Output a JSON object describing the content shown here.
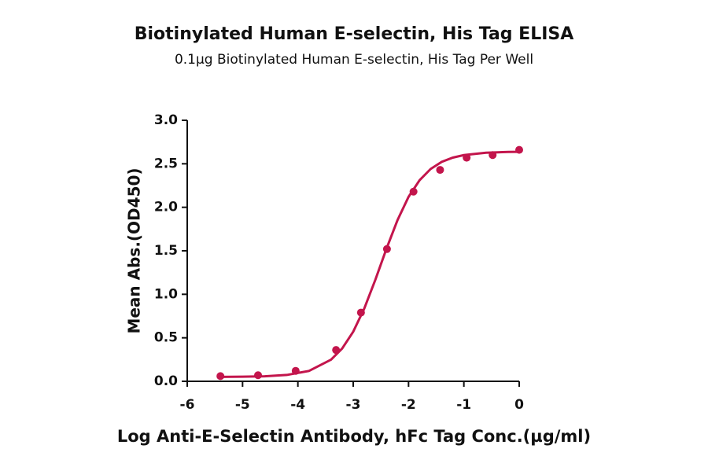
{
  "chart_data": {
    "type": "scatter",
    "title": "Biotinylated Human E-selectin, His Tag ELISA",
    "subtitle": "0.1µg Biotinylated Human E-selectin, His Tag Per Well",
    "x_label": "Log Anti-E-Selectin Antibody, hFc Tag Conc.(µg/ml)",
    "y_label": "Mean Abs.(OD450)",
    "color": "#c3154c",
    "x": [
      -5.4,
      -4.72,
      -4.04,
      -3.31,
      -2.86,
      -2.39,
      -1.91,
      -1.43,
      -0.95,
      -0.48,
      0
    ],
    "values": [
      0.06,
      0.07,
      0.12,
      0.36,
      0.79,
      1.52,
      2.18,
      2.43,
      2.57,
      2.6,
      2.66
    ],
    "curve": {
      "x": [
        -5.4,
        -5.0,
        -4.6,
        -4.2,
        -3.8,
        -3.4,
        -3.2,
        -3.0,
        -2.8,
        -2.6,
        -2.4,
        -2.2,
        -2.0,
        -1.8,
        -1.6,
        -1.4,
        -1.2,
        -1.0,
        -0.6,
        -0.2,
        0
      ],
      "values": [
        0.051,
        0.053,
        0.058,
        0.073,
        0.119,
        0.249,
        0.377,
        0.57,
        0.837,
        1.167,
        1.522,
        1.852,
        2.12,
        2.312,
        2.441,
        2.522,
        2.571,
        2.6,
        2.627,
        2.636,
        2.637
      ]
    },
    "xlim": [
      -6,
      0
    ],
    "xticks": [
      -6,
      -5,
      -4,
      -3,
      -2,
      -1,
      0
    ],
    "ylim": [
      0,
      3
    ],
    "yticks": [
      {
        "value": 0,
        "label": "0.0"
      },
      {
        "value": 0.5,
        "label": "0.5"
      },
      {
        "value": 1,
        "label": "1.0"
      },
      {
        "value": 1.5,
        "label": "1.5"
      },
      {
        "value": 2,
        "label": "2.0"
      },
      {
        "value": 2.5,
        "label": "2.5"
      },
      {
        "value": 3,
        "label": "3.0"
      }
    ]
  }
}
